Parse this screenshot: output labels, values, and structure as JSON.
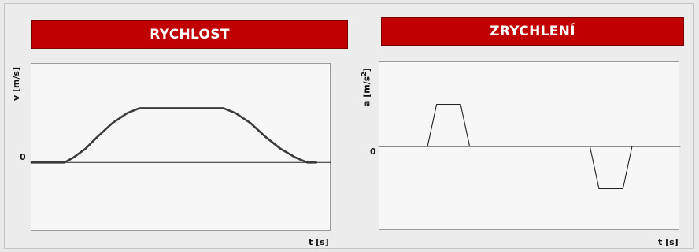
{
  "chart_data": [
    {
      "type": "line",
      "title": "RYCHLOST",
      "ylabel": "v [m/s]",
      "xlabel": "t [s]",
      "yticks": [
        "0"
      ],
      "xlim": [
        0,
        100
      ],
      "ylim": [
        -0.7,
        1.0
      ],
      "grid": false,
      "series": [
        {
          "x": [
            0,
            11,
            14,
            18,
            22,
            27,
            32,
            36,
            40,
            45,
            50,
            55,
            60,
            64,
            68,
            73,
            78,
            83,
            88,
            92,
            95
          ],
          "y": [
            0,
            0,
            0.05,
            0.14,
            0.26,
            0.4,
            0.5,
            0.55,
            0.55,
            0.55,
            0.55,
            0.55,
            0.55,
            0.55,
            0.5,
            0.4,
            0.26,
            0.14,
            0.05,
            0,
            0
          ]
        }
      ]
    },
    {
      "type": "line",
      "title": "ZRYCHLENÍ",
      "ylabel": "a [m/s2]",
      "xlabel": "t [s]",
      "yticks": [
        "0"
      ],
      "xlim": [
        0,
        100
      ],
      "ylim": [
        -1.0,
        1.0
      ],
      "grid": false,
      "series": [
        {
          "x": [
            0,
            16,
            19,
            27,
            30,
            70,
            73,
            81,
            84,
            100
          ],
          "y": [
            0,
            0,
            0.5,
            0.5,
            0,
            0,
            -0.5,
            -0.5,
            0,
            0
          ]
        }
      ]
    }
  ],
  "left": {
    "title": "RYCHLOST",
    "ylabel": "v [m/s]",
    "ytick": "0",
    "xlabel": "t [s]"
  },
  "right": {
    "title": "ZRYCHLENÍ",
    "ylabel_base": "a [m/s",
    "ylabel_sup": "2",
    "ylabel_end": "]",
    "ytick": "0",
    "xlabel": "t [s]"
  }
}
